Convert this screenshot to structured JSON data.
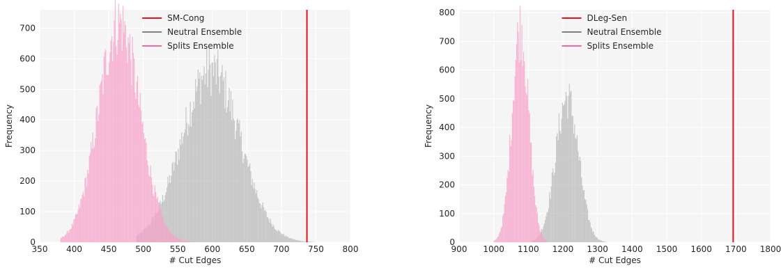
{
  "chart_data": [
    {
      "type": "histogram",
      "xlabel": "# Cut Edges",
      "ylabel": "Frequency",
      "xlim": [
        350,
        800
      ],
      "ylim": [
        0,
        760
      ],
      "xticks": [
        350,
        400,
        450,
        500,
        550,
        600,
        650,
        700,
        750,
        800
      ],
      "yticks": [
        0,
        100,
        200,
        300,
        400,
        500,
        600,
        700
      ],
      "grid": true,
      "legend_position": "top-center",
      "legend": [
        {
          "label": "SM-Cong",
          "color": "#e8121a",
          "kind": "line"
        },
        {
          "label": "Neutral Ensemble",
          "color": "#808080",
          "kind": "line"
        },
        {
          "label": "Splits Ensemble",
          "color": "#f067a6",
          "kind": "line"
        }
      ],
      "vline": {
        "x": 737,
        "color": "#e8121a"
      },
      "series": [
        {
          "name": "Neutral Ensemble",
          "color": "#a9a9a9",
          "opacity": 0.6,
          "approx_distribution": {
            "center": 598,
            "sd": 42,
            "peak": 580,
            "min": 490,
            "max": 750
          }
        },
        {
          "name": "Splits Ensemble",
          "color": "#f7a1c8",
          "opacity": 0.75,
          "approx_distribution": {
            "center": 465,
            "sd": 30,
            "peak": 740,
            "min": 380,
            "max": 590
          }
        }
      ]
    },
    {
      "type": "histogram",
      "xlabel": "# Cut Edges",
      "ylabel": "Frequency",
      "xlim": [
        900,
        1800
      ],
      "ylim": [
        0,
        810
      ],
      "xticks": [
        900,
        1000,
        1100,
        1200,
        1300,
        1400,
        1500,
        1600,
        1700,
        1800
      ],
      "yticks": [
        0,
        100,
        200,
        300,
        400,
        500,
        600,
        700,
        800
      ],
      "grid": true,
      "legend_position": "top-center",
      "legend": [
        {
          "label": "DLeg-Sen",
          "color": "#e8121a",
          "kind": "line"
        },
        {
          "label": "Neutral Ensemble",
          "color": "#808080",
          "kind": "line"
        },
        {
          "label": "Splits Ensemble",
          "color": "#f067a6",
          "kind": "line"
        }
      ],
      "vline": {
        "x": 1692,
        "color": "#e8121a"
      },
      "series": [
        {
          "name": "Neutral Ensemble",
          "color": "#a9a9a9",
          "opacity": 0.6,
          "approx_distribution": {
            "center": 1212,
            "sd": 33,
            "peak": 520,
            "min": 1110,
            "max": 1340
          }
        },
        {
          "name": "Splits Ensemble",
          "color": "#f7a1c8",
          "opacity": 0.75,
          "approx_distribution": {
            "center": 1077,
            "sd": 24,
            "peak": 770,
            "min": 1000,
            "max": 1160
          }
        }
      ]
    }
  ]
}
